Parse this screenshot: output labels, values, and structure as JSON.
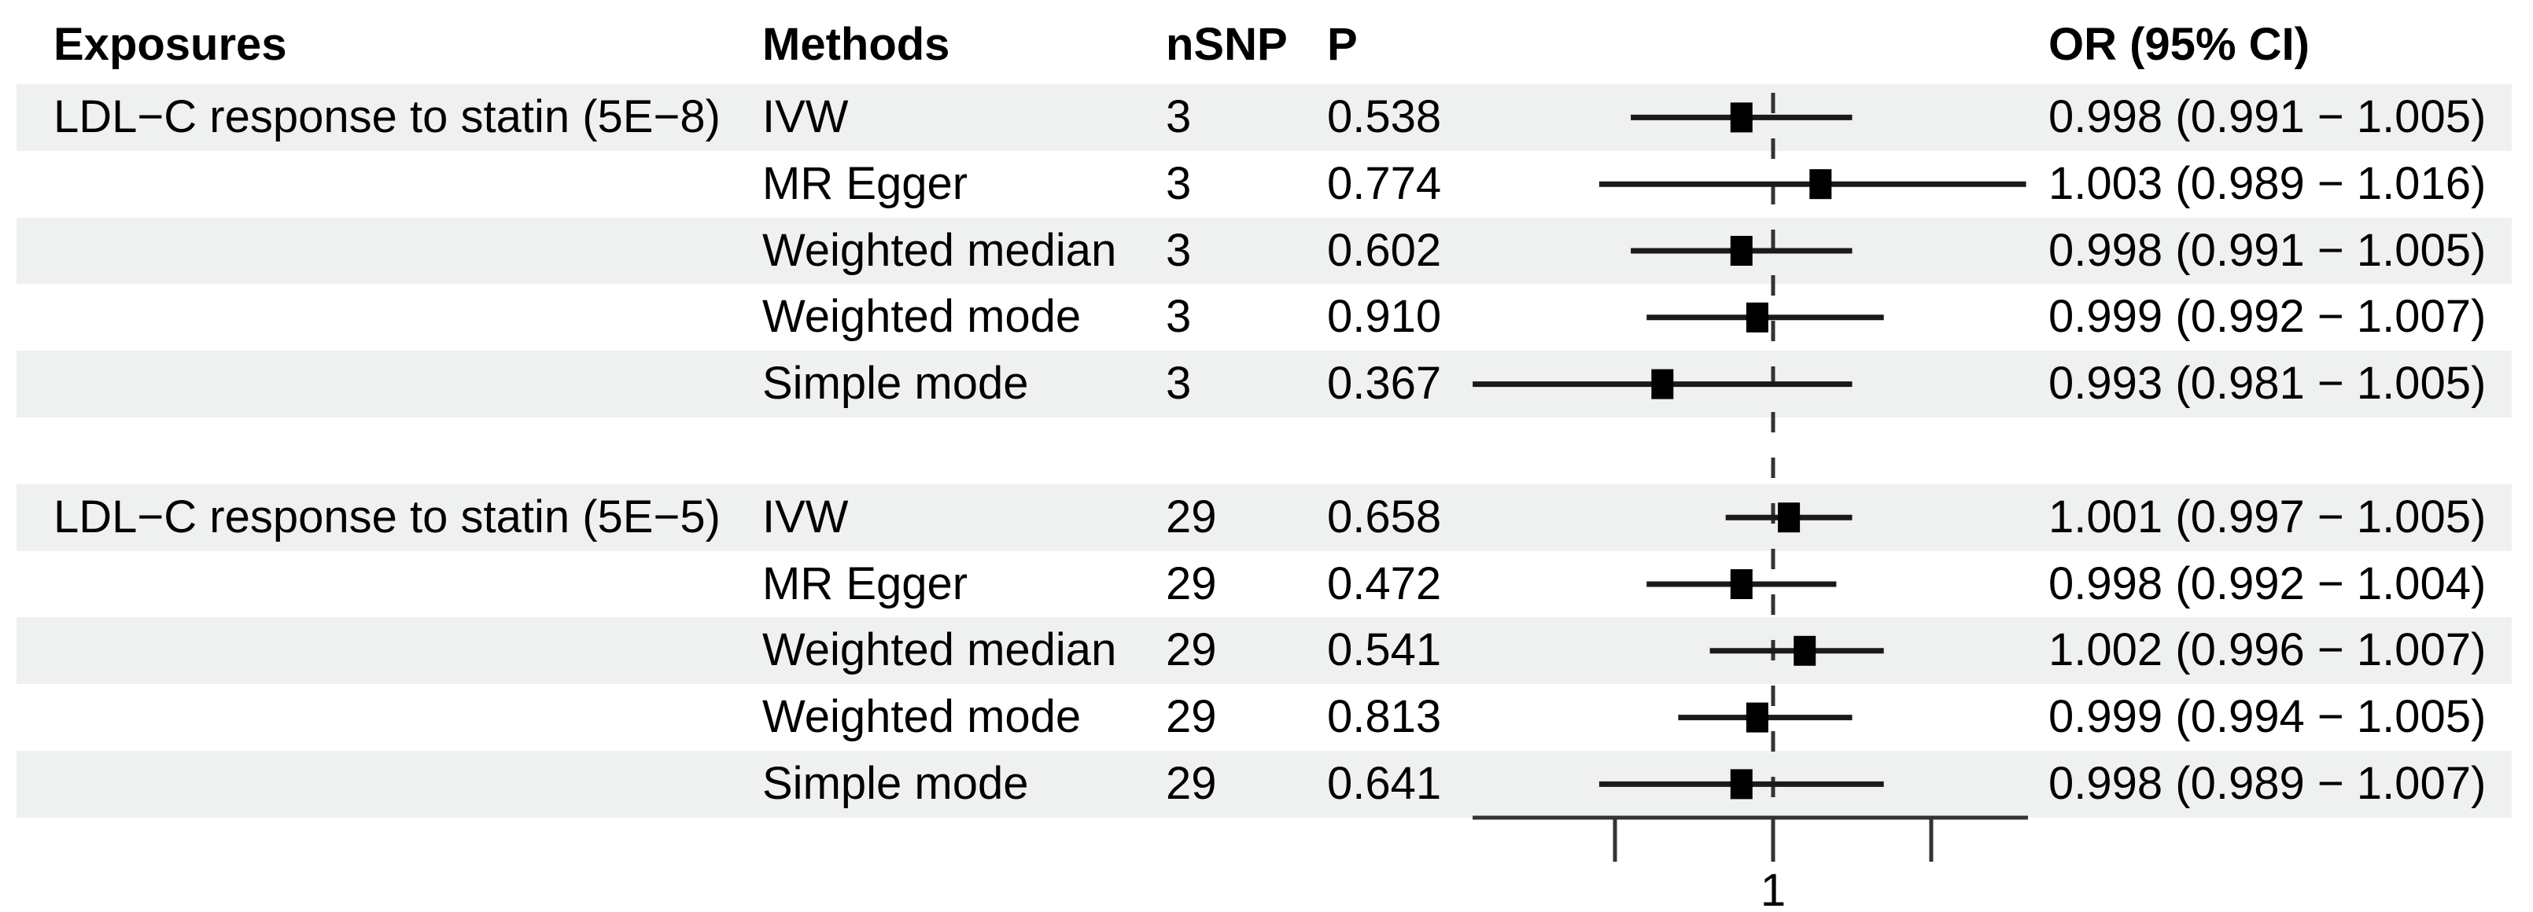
{
  "header": {
    "exposures": "Exposures",
    "methods": "Methods",
    "nsnp": "nSNP",
    "p": "P",
    "or_ci": "OR (95% CI)"
  },
  "colors": {
    "stripe": "#eff1f0",
    "text": "#000000",
    "line": "#1a1a1a",
    "marker": "#000000",
    "axis": "#333333"
  },
  "table": {
    "rows": [
      {
        "exposure": "LDL−C response to statin (5E−8)",
        "method": "IVW",
        "nsnp": "3",
        "p": "0.538",
        "or_ci": "0.998 (0.991 − 1.005)",
        "or": 0.998,
        "low": 0.991,
        "high": 1.005,
        "shaded": true
      },
      {
        "exposure": "",
        "method": "MR Egger",
        "nsnp": "3",
        "p": "0.774",
        "or_ci": "1.003 (0.989 − 1.016)",
        "or": 1.003,
        "low": 0.989,
        "high": 1.016,
        "shaded": false
      },
      {
        "exposure": "",
        "method": "Weighted median",
        "nsnp": "3",
        "p": "0.602",
        "or_ci": "0.998 (0.991 − 1.005)",
        "or": 0.998,
        "low": 0.991,
        "high": 1.005,
        "shaded": true
      },
      {
        "exposure": "",
        "method": "Weighted mode",
        "nsnp": "3",
        "p": "0.910",
        "or_ci": "0.999 (0.992 − 1.007)",
        "or": 0.999,
        "low": 0.992,
        "high": 1.007,
        "shaded": false
      },
      {
        "exposure": "",
        "method": "Simple mode",
        "nsnp": "3",
        "p": "0.367",
        "or_ci": "0.993 (0.981 − 1.005)",
        "or": 0.993,
        "low": 0.981,
        "high": 1.005,
        "shaded": true
      },
      {
        "blank": true,
        "shaded": false
      },
      {
        "exposure": "LDL−C response to statin (5E−5)",
        "method": "IVW",
        "nsnp": "29",
        "p": "0.658",
        "or_ci": "1.001 (0.997 − 1.005)",
        "or": 1.001,
        "low": 0.997,
        "high": 1.005,
        "shaded": true
      },
      {
        "exposure": "",
        "method": "MR Egger",
        "nsnp": "29",
        "p": "0.472",
        "or_ci": "0.998 (0.992 − 1.004)",
        "or": 0.998,
        "low": 0.992,
        "high": 1.004,
        "shaded": false
      },
      {
        "exposure": "",
        "method": "Weighted median",
        "nsnp": "29",
        "p": "0.541",
        "or_ci": "1.002 (0.996 − 1.007)",
        "or": 1.002,
        "low": 0.996,
        "high": 1.007,
        "shaded": true
      },
      {
        "exposure": "",
        "method": "Weighted mode",
        "nsnp": "29",
        "p": "0.813",
        "or_ci": "0.999 (0.994 − 1.005)",
        "or": 0.999,
        "low": 0.994,
        "high": 1.005,
        "shaded": false
      },
      {
        "exposure": "",
        "method": "Simple mode",
        "nsnp": "29",
        "p": "0.641",
        "or_ci": "0.998 (0.989 − 1.007)",
        "or": 0.998,
        "low": 0.989,
        "high": 1.007,
        "shaded": true
      }
    ]
  },
  "chart_data": {
    "type": "forest",
    "title": "",
    "xlabel": "",
    "x_axis": {
      "scale": "linear",
      "ref_line": 1,
      "xlim": [
        0.981,
        1.016
      ],
      "ticks": [
        {
          "value": 0.99,
          "label": ""
        },
        {
          "value": 1.0,
          "label": "1"
        },
        {
          "value": 1.01,
          "label": ""
        }
      ]
    },
    "groups": [
      {
        "exposure": "LDL−C response to statin (5E−8)",
        "estimates": [
          {
            "method": "IVW",
            "nsnp": 3,
            "p": 0.538,
            "or": 0.998,
            "ci_low": 0.991,
            "ci_high": 1.005
          },
          {
            "method": "MR Egger",
            "nsnp": 3,
            "p": 0.774,
            "or": 1.003,
            "ci_low": 0.989,
            "ci_high": 1.016
          },
          {
            "method": "Weighted median",
            "nsnp": 3,
            "p": 0.602,
            "or": 0.998,
            "ci_low": 0.991,
            "ci_high": 1.005
          },
          {
            "method": "Weighted mode",
            "nsnp": 3,
            "p": 0.91,
            "or": 0.999,
            "ci_low": 0.992,
            "ci_high": 1.007
          },
          {
            "method": "Simple mode",
            "nsnp": 3,
            "p": 0.367,
            "or": 0.993,
            "ci_low": 0.981,
            "ci_high": 1.005
          }
        ]
      },
      {
        "exposure": "LDL−C response to statin (5E−5)",
        "estimates": [
          {
            "method": "IVW",
            "nsnp": 29,
            "p": 0.658,
            "or": 1.001,
            "ci_low": 0.997,
            "ci_high": 1.005
          },
          {
            "method": "MR Egger",
            "nsnp": 29,
            "p": 0.472,
            "or": 0.998,
            "ci_low": 0.992,
            "ci_high": 1.004
          },
          {
            "method": "Weighted median",
            "nsnp": 29,
            "p": 0.541,
            "or": 1.002,
            "ci_low": 0.996,
            "ci_high": 1.007
          },
          {
            "method": "Weighted mode",
            "nsnp": 29,
            "p": 0.813,
            "or": 0.999,
            "ci_low": 0.994,
            "ci_high": 1.005
          },
          {
            "method": "Simple mode",
            "nsnp": 29,
            "p": 0.641,
            "or": 0.998,
            "ci_low": 0.989,
            "ci_high": 1.007
          }
        ]
      }
    ]
  }
}
